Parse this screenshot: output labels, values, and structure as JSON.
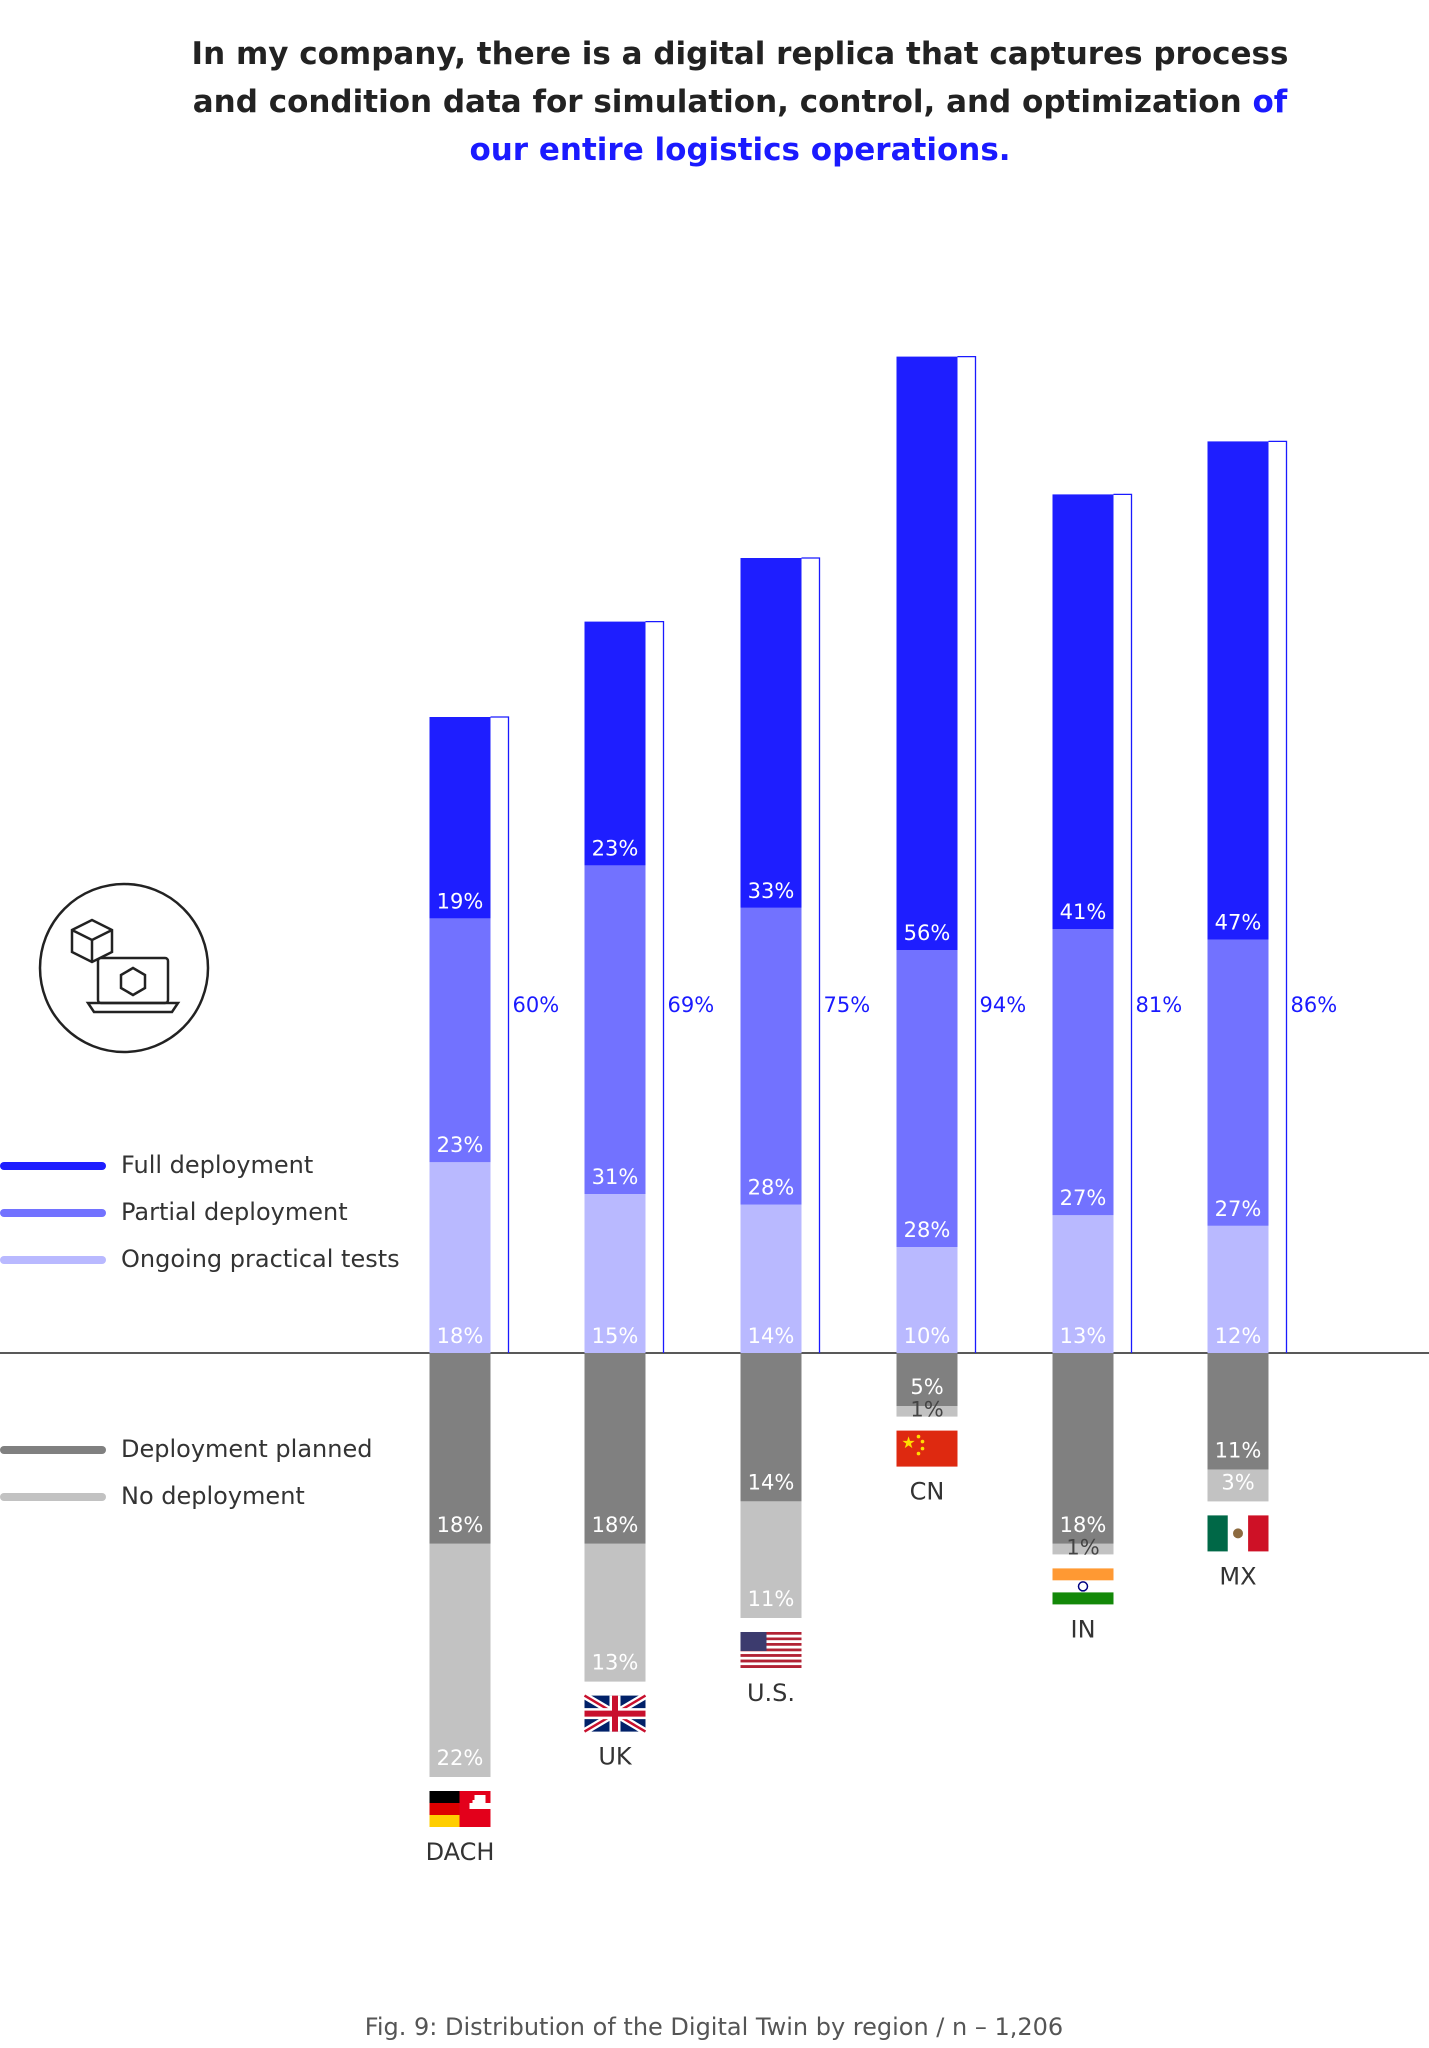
{
  "chart_data": {
    "type": "diverging_stacked_bar",
    "title": "In my company, there is a digital replica that captures process and condition data for simulation, control, and optimization",
    "title_highlight": "of our entire logistics operations.",
    "caption": "Fig. 9: Distribution of the Digital Twin by region / n – 1,206",
    "categories": [
      "DACH",
      "UK",
      "U.S.",
      "CN",
      "IN",
      "MX"
    ],
    "series": [
      {
        "name": "Full deployment",
        "color": "#1e1eff",
        "values": [
          19,
          23,
          33,
          56,
          41,
          47
        ],
        "value_labels": [
          "19%",
          "23%",
          "33%",
          "56%",
          "41%",
          "47%"
        ]
      },
      {
        "name": "Partial deployment",
        "color": "#7272ff",
        "values": [
          23,
          31,
          28,
          28,
          27,
          27
        ],
        "value_labels": [
          "23%",
          "31%",
          "28%",
          "28%",
          "27%",
          "27%"
        ]
      },
      {
        "name": "Ongoing practical tests",
        "color": "#b9b9ff",
        "values": [
          18,
          15,
          14,
          10,
          13,
          12
        ],
        "value_labels": [
          "18%",
          "15%",
          "14%",
          "10%",
          "13%",
          "12%"
        ]
      },
      {
        "name": "Deployment planned",
        "color": "#808080",
        "values": [
          -18,
          -18,
          -14,
          -5,
          -18,
          -11
        ],
        "value_labels": [
          "18%",
          "18%",
          "14%",
          "5%",
          "18%",
          "11%"
        ]
      },
      {
        "name": "No deployment",
        "color": "#c2c2c2",
        "values": [
          -22,
          -13,
          -11,
          -1,
          -1,
          -3
        ],
        "value_labels": [
          "22%",
          "13%",
          "11%",
          "1%",
          "1%",
          "3%"
        ]
      }
    ],
    "totals": [
      60,
      69,
      75,
      94,
      81,
      86
    ],
    "total_labels": [
      "60%",
      "69%",
      "75%",
      "94%",
      "81%",
      "86%"
    ],
    "total_color": "#1a1aff"
  }
}
